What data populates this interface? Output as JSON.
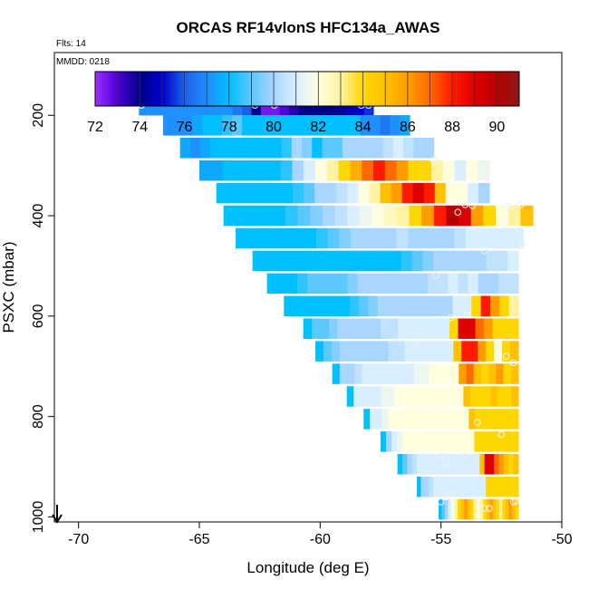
{
  "chart_data": {
    "type": "heatmap",
    "title": "ORCAS RF14vlonS HFC134a_AWAS",
    "flights_label": "Flts: 14",
    "date_label": "MMDD: 0218",
    "xlabel": "Longitude (deg E)",
    "ylabel": "PSXC (mbar)",
    "xlim": [
      -71,
      -50
    ],
    "ylim": [
      1010,
      75
    ],
    "x_ticks": [
      -70,
      -65,
      -60,
      -55,
      -50
    ],
    "x_tick_labels": [
      "-70",
      "-65",
      "-60",
      "-55",
      "-50"
    ],
    "y_ticks": [
      200,
      400,
      600,
      800,
      1000
    ],
    "y_tick_labels": [
      "200",
      "400",
      "600",
      "800",
      "1000"
    ],
    "colorbar": {
      "range": [
        72,
        91
      ],
      "ticks": [
        72,
        74,
        76,
        78,
        80,
        82,
        84,
        86,
        88,
        90
      ],
      "tick_labels": [
        "72",
        "74",
        "76",
        "78",
        "80",
        "82",
        "84",
        "86",
        "88",
        "90"
      ],
      "stops": [
        [
          72,
          "#9b30ff"
        ],
        [
          73,
          "#5000d8"
        ],
        [
          74,
          "#00008b"
        ],
        [
          75,
          "#0000cd"
        ],
        [
          76,
          "#1c5fe6"
        ],
        [
          77,
          "#1e90ff"
        ],
        [
          78,
          "#00bfff"
        ],
        [
          79,
          "#5cc8ff"
        ],
        [
          80,
          "#a9d6ff"
        ],
        [
          81,
          "#d9eeff"
        ],
        [
          82,
          "#ffffe0"
        ],
        [
          83,
          "#fff2a0"
        ],
        [
          84,
          "#ffd700"
        ],
        [
          85,
          "#ffc000"
        ],
        [
          86,
          "#ff9c00"
        ],
        [
          87,
          "#ff6a00"
        ],
        [
          88,
          "#ff1a00"
        ],
        [
          89,
          "#dd0000"
        ],
        [
          90,
          "#b80000"
        ],
        [
          91,
          "#8b1a1a"
        ]
      ]
    },
    "rows": [
      {
        "p": 180,
        "x0": -67.5,
        "x1": -57.8,
        "cells": [
          77,
          77,
          77,
          77,
          77,
          77,
          77,
          77,
          77,
          77,
          76.5,
          76,
          74,
          72.5,
          72.5,
          73,
          73.5,
          74,
          74,
          74,
          74,
          74,
          74.5,
          75,
          75.5
        ]
      },
      {
        "p": 220,
        "x0": -66.5,
        "x1": -56.3,
        "cells": [
          77,
          77,
          77,
          77.5,
          78,
          78,
          78.5,
          79,
          78,
          78,
          78,
          78,
          78,
          78,
          78,
          78,
          78,
          78,
          78,
          78,
          77,
          77,
          76.5,
          77,
          77.5
        ]
      },
      {
        "p": 265,
        "x0": -65.8,
        "x1": -55.3,
        "cells": [
          77.5,
          77,
          77.5,
          78,
          78,
          78,
          78,
          78,
          78,
          78,
          78.5,
          80,
          79.5,
          78,
          79,
          79,
          80,
          80,
          80,
          80,
          80.5,
          81,
          80.5,
          80,
          80
        ]
      },
      {
        "p": 310,
        "x0": -65.0,
        "x1": -53.0,
        "cells": [
          77.5,
          77.5,
          78,
          78,
          78,
          78,
          78,
          78.5,
          80,
          81,
          82,
          83,
          84,
          85.5,
          87,
          88,
          87,
          86,
          84,
          84,
          83,
          82,
          81,
          82,
          81.5
        ]
      },
      {
        "p": 355,
        "x0": -64.3,
        "x1": -53.0,
        "cells": [
          78,
          78,
          78,
          78,
          78,
          78,
          78,
          78.5,
          79,
          80,
          80,
          80.5,
          81,
          82,
          83,
          85,
          86,
          88,
          89,
          88,
          85,
          82,
          82,
          81,
          80
        ]
      },
      {
        "p": 400,
        "x0": -64.0,
        "x1": -51.2,
        "cells": [
          78,
          78,
          78,
          78,
          78,
          78.5,
          79,
          79.5,
          80,
          80.5,
          81,
          81.5,
          82,
          82.5,
          83,
          84,
          86,
          88,
          90,
          89,
          86,
          84,
          82,
          83,
          85
        ]
      },
      {
        "p": 445,
        "x0": -63.5,
        "x1": -51.6,
        "cells": [
          78,
          78,
          78,
          78,
          78,
          78,
          78,
          78.5,
          79,
          79.5,
          80,
          80,
          80,
          80,
          80.5,
          80,
          80,
          80,
          80,
          80.5,
          81,
          81,
          81,
          81,
          81
        ]
      },
      {
        "p": 490,
        "x0": -62.8,
        "x1": -51.8,
        "cells": [
          78,
          78,
          78,
          78,
          78,
          78,
          78,
          78,
          78,
          78,
          78,
          78,
          78,
          78,
          78.5,
          79,
          79.5,
          80,
          80,
          80,
          80,
          80,
          80.5,
          80.5,
          81
        ]
      },
      {
        "p": 535,
        "x0": -62.2,
        "x1": -51.8,
        "cells": [
          78,
          78,
          78,
          78.5,
          79,
          79,
          79,
          79,
          79.5,
          80,
          80,
          80,
          80,
          80,
          80,
          80,
          80.5,
          80.5,
          81,
          80.5,
          81,
          80,
          80,
          80.5,
          80.5
        ]
      },
      {
        "p": 580,
        "x0": -61.5,
        "x1": -51.8,
        "cells": [
          78,
          78,
          78,
          78,
          78,
          78,
          78,
          78.5,
          79,
          79.5,
          80,
          80,
          80,
          80,
          80,
          80,
          80,
          80,
          81,
          81,
          84,
          88,
          86,
          84,
          83
        ]
      },
      {
        "p": 625,
        "x0": -60.7,
        "x1": -51.8,
        "cells": [
          78,
          79,
          79,
          79.5,
          80,
          80,
          80,
          80,
          80,
          80.5,
          80.5,
          81,
          81,
          81,
          81,
          81,
          81,
          84,
          89,
          89,
          87,
          86,
          84,
          84,
          84
        ]
      },
      {
        "p": 670,
        "x0": -60.2,
        "x1": -51.8,
        "cells": [
          78,
          79,
          79.5,
          80,
          80,
          80,
          80,
          80,
          80,
          80.5,
          80.5,
          81,
          81,
          81,
          81,
          81,
          81,
          85,
          88,
          88,
          86,
          84,
          82,
          84,
          85
        ]
      },
      {
        "p": 715,
        "x0": -59.5,
        "x1": -51.8,
        "cells": [
          78,
          80,
          80,
          80.5,
          81,
          81,
          81,
          81,
          81,
          81,
          81,
          81.5,
          81.5,
          82,
          82,
          82,
          82,
          86,
          87,
          85,
          84,
          85,
          86,
          84,
          85
        ]
      },
      {
        "p": 760,
        "x0": -58.9,
        "x1": -51.8,
        "cells": [
          78,
          81,
          81,
          81,
          81,
          81.5,
          81.5,
          82,
          82,
          82,
          82,
          82,
          82,
          82,
          82,
          82,
          82,
          85,
          84,
          84,
          84,
          85,
          84,
          84,
          85
        ]
      },
      {
        "p": 805,
        "x0": -58.2,
        "x1": -51.8,
        "cells": [
          78,
          81,
          81,
          81.5,
          82,
          82,
          82,
          82,
          82,
          82,
          82,
          82,
          82,
          82,
          82,
          82,
          82,
          85,
          84,
          84,
          84,
          84,
          84,
          84,
          84
        ]
      },
      {
        "p": 850,
        "x0": -57.5,
        "x1": -51.8,
        "cells": [
          78,
          80,
          81,
          81.5,
          82,
          82,
          82,
          82,
          82,
          82,
          82,
          82,
          82,
          82,
          82,
          82,
          82,
          84,
          84,
          84,
          84,
          84,
          84,
          84,
          84
        ]
      },
      {
        "p": 895,
        "x0": -56.8,
        "x1": -51.8,
        "cells": [
          78,
          79,
          80,
          80.5,
          81,
          81,
          81,
          81,
          81,
          81,
          81,
          81,
          81,
          81,
          81,
          81,
          81,
          85,
          89,
          89,
          87,
          86,
          85,
          84,
          85
        ]
      },
      {
        "p": 940,
        "x0": -56.0,
        "x1": -51.8,
        "cells": [
          78,
          80,
          80,
          80.5,
          81,
          81,
          81,
          81,
          81,
          81,
          81,
          81,
          81,
          81,
          81,
          81,
          81,
          84,
          84,
          84,
          84,
          84,
          84,
          84,
          84
        ]
      },
      {
        "p": 985,
        "x0": -55.1,
        "x1": -51.8,
        "cells": [
          78,
          79,
          80,
          81,
          82,
          83,
          84,
          85,
          86,
          85,
          84,
          83,
          82,
          83,
          84,
          85,
          86,
          85,
          84,
          83,
          84,
          85,
          86,
          85,
          84
        ]
      }
    ],
    "markers": [
      [
        -67.4,
        180
      ],
      [
        -62.7,
        180
      ],
      [
        -61.9,
        180
      ],
      [
        -58.3,
        180
      ],
      [
        -58.0,
        180
      ],
      [
        -55.3,
        290
      ],
      [
        -54.0,
        378
      ],
      [
        -53.7,
        380
      ],
      [
        -51.7,
        378
      ],
      [
        -54.3,
        393
      ],
      [
        -52.2,
        382
      ],
      [
        -53.2,
        470
      ],
      [
        -51.6,
        458
      ],
      [
        -55.2,
        518
      ],
      [
        -54.6,
        603
      ],
      [
        -53.9,
        597
      ],
      [
        -52.3,
        680
      ],
      [
        -52.0,
        693
      ],
      [
        -53.5,
        812
      ],
      [
        -52.5,
        836
      ],
      [
        -55.0,
        878
      ],
      [
        -54.8,
        892
      ],
      [
        -54.0,
        878
      ],
      [
        -54.8,
        960
      ],
      [
        -55.0,
        970
      ],
      [
        -53.2,
        983
      ],
      [
        -53.0,
        983
      ],
      [
        -52.0,
        970
      ],
      [
        -51.9,
        968
      ],
      [
        -54.6,
        955
      ]
    ]
  }
}
